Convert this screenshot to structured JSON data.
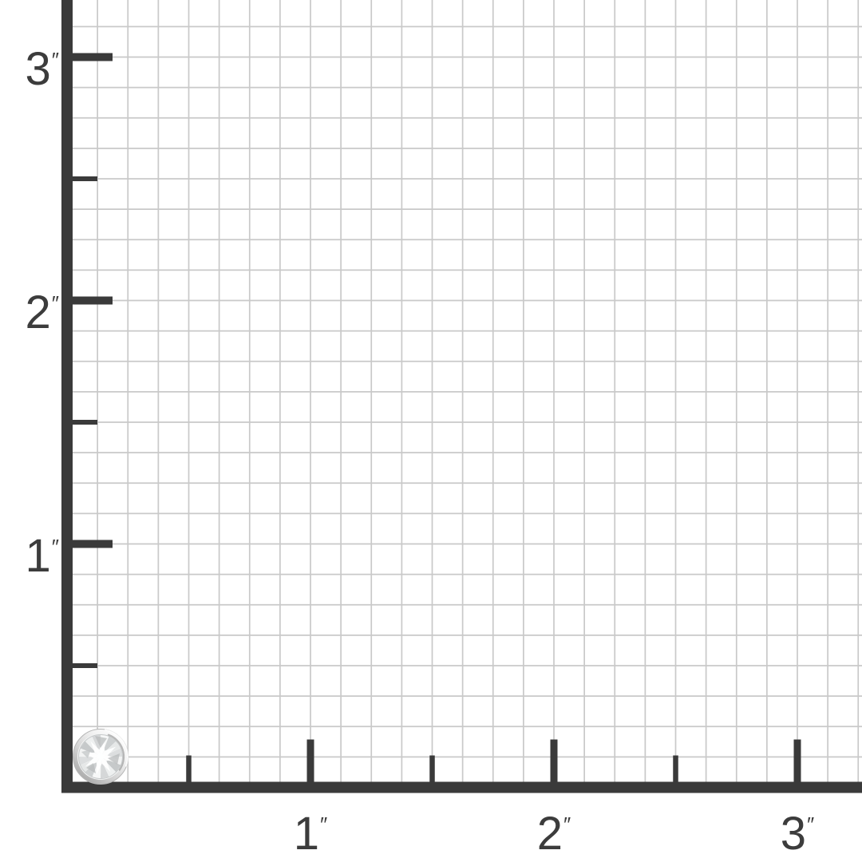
{
  "page": {
    "background": "#ffffff",
    "description": "Jewelry actual-size reference chart: bezel-set diamond stud on an inch measurement grid"
  },
  "chart_data": {
    "type": "measurement-grid",
    "title": "",
    "unit": "inch",
    "unit_symbol": "″",
    "pixels_per_inch": 305,
    "x_axis": {
      "min": 0,
      "max": 3.25,
      "major_ticks": [
        1,
        2,
        3
      ],
      "minor_ticks": [
        0.5,
        1.5,
        2.5
      ],
      "labels": [
        {
          "value": "1"
        },
        {
          "value": "2"
        },
        {
          "value": "3"
        }
      ]
    },
    "y_axis": {
      "min": 0,
      "max": 3.25,
      "major_ticks": [
        1,
        2,
        3
      ],
      "minor_ticks": [
        0.5,
        1.5,
        2.5
      ],
      "labels": [
        {
          "value": "1"
        },
        {
          "value": "2"
        },
        {
          "value": "3"
        }
      ]
    },
    "grid": {
      "squares_per_inch": 8,
      "color": "#c9c9c9",
      "visible": true
    },
    "axis_color": "#3a3a3a",
    "label_color": "#3c3c3c",
    "object": {
      "name": "bezel-set round diamond stud",
      "center_x_in": 0.138,
      "center_y_in": 0.126,
      "diameter_in": 0.23
    }
  }
}
